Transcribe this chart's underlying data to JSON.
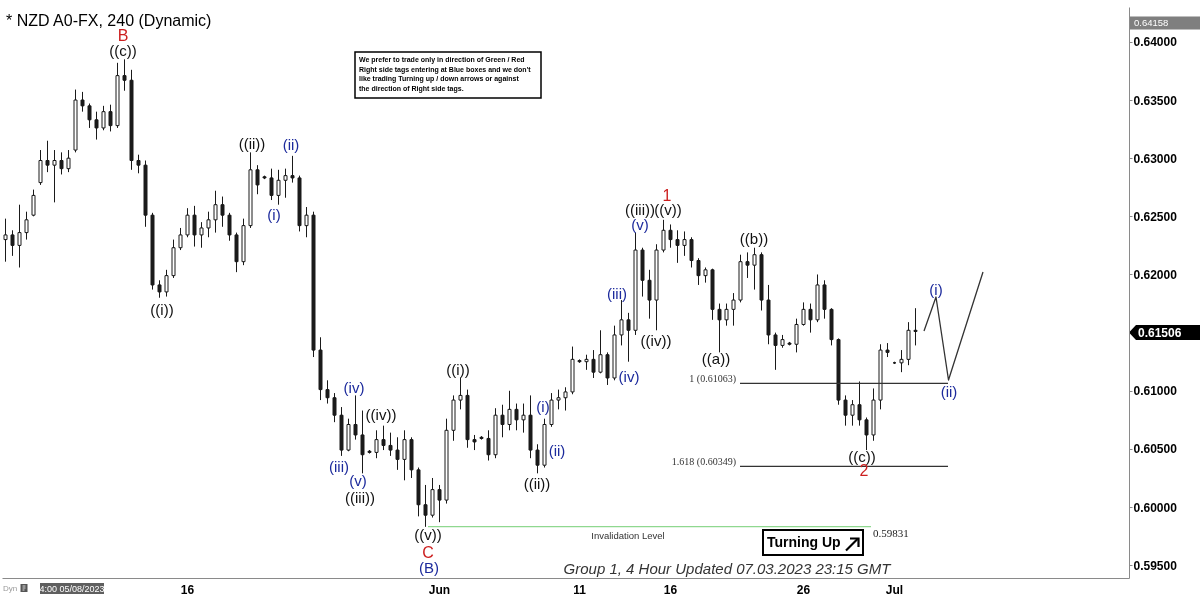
{
  "chart_data": {
    "type": "candlestick",
    "title": "* NZD A0-FX, 240 (Dynamic)",
    "categories": [
      null,
      null,
      null,
      null,
      null,
      null,
      null,
      null,
      null,
      null,
      null,
      null,
      null,
      null,
      null,
      null,
      null,
      null,
      null,
      null,
      null,
      null,
      null,
      null,
      null,
      null,
      "16",
      null,
      null,
      null,
      null,
      null,
      null,
      null,
      null,
      null,
      null,
      null,
      null,
      null,
      null,
      null,
      null,
      null,
      null,
      null,
      null,
      null,
      null,
      null,
      null,
      null,
      null,
      null,
      null,
      null,
      null,
      null,
      null,
      null,
      null,
      null,
      "Jun",
      null,
      null,
      null,
      null,
      null,
      null,
      null,
      null,
      null,
      null,
      null,
      null,
      null,
      null,
      null,
      null,
      null,
      null,
      null,
      "11",
      null,
      null,
      null,
      null,
      null,
      null,
      null,
      null,
      null,
      null,
      null,
      null,
      "16",
      null,
      null,
      null,
      null,
      null,
      null,
      null,
      null,
      null,
      null,
      null,
      null,
      null,
      null,
      null,
      null,
      null,
      null,
      "26",
      null,
      null,
      null,
      null,
      null,
      null,
      null,
      null,
      null,
      null,
      null,
      null,
      "Jul",
      null,
      null,
      null,
      null,
      null,
      null,
      null,
      null,
      null,
      null,
      null,
      null,
      null,
      null,
      null,
      null,
      null,
      null,
      null,
      null,
      null,
      null,
      null,
      null,
      null,
      null,
      null,
      null,
      null,
      null,
      null,
      null,
      null
    ],
    "ohlc": [
      [
        0.623,
        0.6248,
        0.6211,
        0.6234
      ],
      [
        0.6234,
        0.6238,
        0.6216,
        0.6225
      ],
      [
        0.6225,
        0.626,
        0.6206,
        0.6236
      ],
      [
        0.6236,
        0.6254,
        0.623,
        0.6247
      ],
      [
        0.6251,
        0.6273,
        0.625,
        0.6268
      ],
      [
        0.6279,
        0.6307,
        0.6277,
        0.6298
      ],
      [
        0.6298,
        0.6315,
        0.6288,
        0.6294
      ],
      [
        0.6294,
        0.6307,
        0.6262,
        0.6298
      ],
      [
        0.6298,
        0.6305,
        0.6286,
        0.6291
      ],
      [
        0.6291,
        0.6307,
        0.6288,
        0.63
      ],
      [
        0.6307,
        0.6359,
        0.6305,
        0.635
      ],
      [
        0.635,
        0.6357,
        0.634,
        0.6345
      ],
      [
        0.6345,
        0.6347,
        0.6326,
        0.6333
      ],
      [
        0.6333,
        0.634,
        0.6316,
        0.6326
      ],
      [
        0.6326,
        0.6345,
        0.6324,
        0.634
      ],
      [
        0.634,
        0.6346,
        0.6323,
        0.6328
      ],
      [
        0.6328,
        0.6382,
        0.6326,
        0.6371
      ],
      [
        0.6371,
        0.6385,
        0.6358,
        0.6367
      ],
      [
        0.6367,
        0.6376,
        0.629,
        0.6298
      ],
      [
        0.6298,
        0.6303,
        0.6287,
        0.6294
      ],
      [
        0.6294,
        0.6298,
        0.6241,
        0.6251
      ],
      [
        0.6251,
        0.6253,
        0.6187,
        0.6191
      ],
      [
        0.6191,
        0.6195,
        0.618,
        0.6185
      ],
      [
        0.6185,
        0.6204,
        0.6181,
        0.6199
      ],
      [
        0.6199,
        0.623,
        0.6197,
        0.6223
      ],
      [
        0.6223,
        0.624,
        0.6221,
        0.6234
      ],
      [
        0.6234,
        0.6257,
        0.6232,
        0.6251
      ],
      [
        0.6251,
        0.6259,
        0.6224,
        0.6234
      ],
      [
        0.6234,
        0.6245,
        0.6223,
        0.624
      ],
      [
        0.624,
        0.6254,
        0.6232,
        0.6247
      ],
      [
        0.6247,
        0.6272,
        0.6236,
        0.626
      ],
      [
        0.626,
        0.6267,
        0.6241,
        0.6251
      ],
      [
        0.6251,
        0.6253,
        0.6229,
        0.6234
      ],
      [
        0.6234,
        0.6236,
        0.6202,
        0.6211
      ],
      [
        0.6211,
        0.6248,
        0.6208,
        0.6242
      ],
      [
        0.6242,
        0.6305,
        0.624,
        0.629
      ],
      [
        0.629,
        0.6294,
        0.6269,
        0.6277
      ],
      [
        0.6284,
        0.6285,
        0.6282,
        0.6283
      ],
      [
        0.6283,
        0.6291,
        0.6264,
        0.6268
      ],
      [
        0.6268,
        0.629,
        0.626,
        0.6281
      ],
      [
        0.6281,
        0.6291,
        0.6266,
        0.6285
      ],
      [
        0.6285,
        0.6302,
        0.6279,
        0.6283
      ],
      [
        0.6283,
        0.6285,
        0.6237,
        0.6242
      ],
      [
        0.6242,
        0.6258,
        0.6232,
        0.6251
      ],
      [
        0.6251,
        0.6254,
        0.6129,
        0.6135
      ],
      [
        0.6135,
        0.6146,
        0.6092,
        0.6101
      ],
      [
        0.6101,
        0.6109,
        0.6089,
        0.6094
      ],
      [
        0.6094,
        0.6098,
        0.6073,
        0.6079
      ],
      [
        0.6079,
        0.6086,
        0.6044,
        0.6049
      ],
      [
        0.6049,
        0.6076,
        0.6048,
        0.6071
      ],
      [
        0.6071,
        0.6096,
        0.6058,
        0.6062
      ],
      [
        0.6062,
        0.6083,
        0.6029,
        0.6045
      ],
      [
        0.6048,
        0.6049,
        0.6046,
        0.6047
      ],
      [
        0.6047,
        0.6066,
        0.6042,
        0.6058
      ],
      [
        0.6058,
        0.607,
        0.6049,
        0.6053
      ],
      [
        0.6053,
        0.6064,
        0.6044,
        0.6049
      ],
      [
        0.6049,
        0.606,
        0.6032,
        0.6041
      ],
      [
        0.6041,
        0.6066,
        0.6023,
        0.6058
      ],
      [
        0.6058,
        0.606,
        0.6025,
        0.6032
      ],
      [
        0.6032,
        0.6034,
        0.5992,
        0.6002
      ],
      [
        0.6002,
        0.6019,
        0.5983,
        0.5993
      ],
      [
        0.5993,
        0.6025,
        0.5991,
        0.6015
      ],
      [
        0.6015,
        0.6019,
        0.5987,
        0.6006
      ],
      [
        0.6006,
        0.6076,
        0.6003,
        0.6066
      ],
      [
        0.6066,
        0.6096,
        0.6057,
        0.6092
      ],
      [
        0.6092,
        0.6111,
        0.6084,
        0.6096
      ],
      [
        0.6096,
        0.6101,
        0.6051,
        0.6058
      ],
      [
        0.6058,
        0.6062,
        0.6049,
        0.6056
      ],
      [
        0.606,
        0.6061,
        0.6058,
        0.6059
      ],
      [
        0.6059,
        0.6066,
        0.604,
        0.6045
      ],
      [
        0.6045,
        0.6085,
        0.6042,
        0.6079
      ],
      [
        0.6079,
        0.6088,
        0.606,
        0.6071
      ],
      [
        0.6071,
        0.61,
        0.6066,
        0.6084
      ],
      [
        0.6084,
        0.6089,
        0.6066,
        0.6075
      ],
      [
        0.6075,
        0.6089,
        0.6064,
        0.6079
      ],
      [
        0.6079,
        0.6096,
        0.6042,
        0.6049
      ],
      [
        0.6049,
        0.6054,
        0.6029,
        0.6036
      ],
      [
        0.6036,
        0.6076,
        0.6034,
        0.6071
      ],
      [
        0.6071,
        0.6098,
        0.6069,
        0.6092
      ],
      [
        0.6092,
        0.6101,
        0.6084,
        0.6094
      ],
      [
        0.6094,
        0.6103,
        0.6083,
        0.6099
      ],
      [
        0.6099,
        0.6138,
        0.6097,
        0.6127
      ],
      [
        0.6126,
        0.6127,
        0.6124,
        0.6125
      ],
      [
        0.6125,
        0.6131,
        0.6118,
        0.6127
      ],
      [
        0.6127,
        0.6135,
        0.6111,
        0.6116
      ],
      [
        0.6116,
        0.6152,
        0.6115,
        0.6131
      ],
      [
        0.6131,
        0.6133,
        0.6105,
        0.6111
      ],
      [
        0.6111,
        0.6156,
        0.6109,
        0.6148
      ],
      [
        0.6148,
        0.6178,
        0.6139,
        0.6161
      ],
      [
        0.6161,
        0.6167,
        0.6125,
        0.6152
      ],
      [
        0.6152,
        0.6236,
        0.6148,
        0.6221
      ],
      [
        0.6221,
        0.6223,
        0.6181,
        0.6195
      ],
      [
        0.6195,
        0.6204,
        0.6162,
        0.6178
      ],
      [
        0.6178,
        0.6226,
        0.6152,
        0.6221
      ],
      [
        0.6221,
        0.6247,
        0.6219,
        0.6238
      ],
      [
        0.6238,
        0.6243,
        0.6223,
        0.623
      ],
      [
        0.623,
        0.6238,
        0.621,
        0.6225
      ],
      [
        0.6225,
        0.6237,
        0.6216,
        0.623
      ],
      [
        0.623,
        0.6232,
        0.6206,
        0.6212
      ],
      [
        0.6212,
        0.6214,
        0.6191,
        0.6199
      ],
      [
        0.6199,
        0.6206,
        0.6193,
        0.6204
      ],
      [
        0.6204,
        0.6205,
        0.6161,
        0.617
      ],
      [
        0.617,
        0.6175,
        0.6133,
        0.6161
      ],
      [
        0.6161,
        0.6175,
        0.6156,
        0.617
      ],
      [
        0.617,
        0.6184,
        0.6156,
        0.6178
      ],
      [
        0.6178,
        0.6217,
        0.6176,
        0.6211
      ],
      [
        0.6211,
        0.6219,
        0.6197,
        0.6208
      ],
      [
        0.6208,
        0.6223,
        0.6187,
        0.6217
      ],
      [
        0.6217,
        0.6219,
        0.6169,
        0.6178
      ],
      [
        0.6178,
        0.6191,
        0.614,
        0.6148
      ],
      [
        0.6148,
        0.615,
        0.6118,
        0.6139
      ],
      [
        0.6139,
        0.6148,
        0.6137,
        0.6144
      ],
      [
        0.6141,
        0.6142,
        0.6139,
        0.614
      ],
      [
        0.614,
        0.6162,
        0.6133,
        0.6157
      ],
      [
        0.6157,
        0.6176,
        0.6156,
        0.617
      ],
      [
        0.617,
        0.6175,
        0.615,
        0.6161
      ],
      [
        0.6161,
        0.62,
        0.6159,
        0.6191
      ],
      [
        0.6191,
        0.6195,
        0.6162,
        0.617
      ],
      [
        0.617,
        0.6171,
        0.6139,
        0.6144
      ],
      [
        0.6144,
        0.6145,
        0.6088,
        0.6092
      ],
      [
        0.6092,
        0.6096,
        0.607,
        0.6079
      ],
      [
        0.6079,
        0.6092,
        0.607,
        0.6088
      ],
      [
        0.6088,
        0.6108,
        0.607,
        0.6075
      ],
      [
        0.6075,
        0.6077,
        0.6049,
        0.6062
      ],
      [
        0.6062,
        0.6102,
        0.6057,
        0.6092
      ],
      [
        0.6092,
        0.614,
        0.6084,
        0.6135
      ],
      [
        0.6135,
        0.6141,
        0.6129,
        0.6133
      ],
      [
        0.6124,
        0.6125,
        0.6123,
        0.6124
      ],
      [
        0.6124,
        0.6135,
        0.6116,
        0.6127
      ],
      [
        0.6127,
        0.6159,
        0.6122,
        0.6152
      ],
      [
        0.6152,
        0.6171,
        0.6139,
        0.6151
      ],
      null,
      null,
      null,
      null,
      null,
      null,
      null,
      null,
      null,
      null,
      null,
      null,
      null,
      null,
      null,
      null,
      null,
      null,
      null,
      null,
      null,
      null,
      null,
      null,
      null,
      null,
      null,
      null,
      null,
      null
    ],
    "color": "#1a1a1a",
    "ylim": [
      0.5939,
      0.643
    ],
    "yticks": [
      {
        "value": 0.595,
        "label": "0.59500"
      },
      {
        "value": 0.6,
        "label": "0.60000"
      },
      {
        "value": 0.605,
        "label": "0.60500"
      },
      {
        "value": 0.61,
        "label": "0.61000"
      },
      {
        "value": 0.62,
        "label": "0.62000"
      },
      {
        "value": 0.625,
        "label": "0.62500"
      },
      {
        "value": 0.63,
        "label": "0.63000"
      },
      {
        "value": 0.635,
        "label": "0.63500"
      },
      {
        "value": 0.64,
        "label": "0.64000"
      }
    ],
    "ref_lines": [
      {
        "axis": "y",
        "value": 0.61063,
        "label": "1 (0.61063)",
        "color": "#333333"
      },
      {
        "axis": "y",
        "value": 0.60349,
        "label": "1.618 (0.60349)",
        "color": "#333333"
      },
      {
        "axis": "y",
        "value": 0.59831,
        "label": "Invalidation Level",
        "color": "#8fd88f"
      }
    ],
    "annotations": [
      "We prefer to trade only in direction of Green / Red Right side tags entering at Blue boxes and we don't like trading Turning up / down arrows or against the direction of Right side tags.",
      "B",
      "((c))",
      "((ii))",
      "(ii)",
      "(i)",
      "((i))",
      "(iv)",
      "((iv))",
      "(iii)",
      "(v)",
      "((iii))",
      "((v))",
      "C",
      "(B)",
      "((i))",
      "(i)",
      "(ii)",
      "((ii))",
      "(iii)",
      "(iv)",
      "(v)",
      "((iii))",
      "((v))",
      "1",
      "((iv))",
      "((a))",
      "((b))",
      "((c))",
      "2",
      "(i)",
      "(ii)",
      "Turning Up",
      "0.59831",
      "0.64158",
      "0.61506",
      "4:00 05/08/2023",
      "Dyn",
      "Group 1, 4 Hour Updated 07.03.2023 23:15 GMT"
    ]
  }
}
